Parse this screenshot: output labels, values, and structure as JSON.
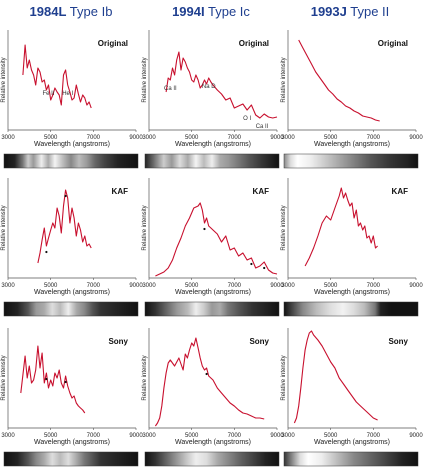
{
  "columns": [
    {
      "id": "1984L",
      "bold": "1984L",
      "rest": " Type Ib"
    },
    {
      "id": "1994I",
      "bold": "1994I",
      "rest": " Type Ic"
    },
    {
      "id": "1993J",
      "bold": "1993J",
      "rest": " Type II"
    }
  ],
  "rows": [
    {
      "label": "Original"
    },
    {
      "label": "KAF"
    },
    {
      "label": "Sony"
    }
  ],
  "ylabel": "Relative intensity",
  "xlabel": "Wavelength (angstroms)",
  "x_ticks": [
    "3000",
    "5000",
    "7000",
    "9000"
  ],
  "colors": {
    "title": "#1f3f8f",
    "curve": "#c8102e",
    "axis": "#555555"
  },
  "chart_data": [
    {
      "type": "line",
      "title": "1984L Type Ib",
      "subtitle": "Original",
      "xlabel": "Wavelength (angstroms)",
      "ylabel": "Relative intensity",
      "xlim": [
        3000,
        9000
      ],
      "ylim": [
        0,
        1
      ],
      "x": [
        3700,
        3800,
        3900,
        4000,
        4100,
        4200,
        4300,
        4400,
        4500,
        4600,
        4700,
        4800,
        4900,
        5000,
        5100,
        5200,
        5300,
        5400,
        5500,
        5600,
        5700,
        5800,
        5900,
        6000,
        6100,
        6200,
        6300,
        6400,
        6500,
        6600,
        6700,
        6800,
        6900
      ],
      "y": [
        0.55,
        0.85,
        0.62,
        0.7,
        0.6,
        0.55,
        0.45,
        0.62,
        0.58,
        0.48,
        0.5,
        0.4,
        0.45,
        0.3,
        0.35,
        0.42,
        0.38,
        0.35,
        0.25,
        0.55,
        0.6,
        0.45,
        0.38,
        0.3,
        0.32,
        0.45,
        0.36,
        0.28,
        0.35,
        0.32,
        0.25,
        0.28,
        0.22
      ],
      "annotations": [
        {
          "text": "Fe II",
          "x": 4900
        },
        {
          "text": "He I",
          "x": 5800
        }
      ]
    },
    {
      "type": "line",
      "title": "1994I Type Ic",
      "subtitle": "Original",
      "xlabel": "Wavelength (angstroms)",
      "ylabel": "Relative intensity",
      "xlim": [
        3000,
        9000
      ],
      "ylim": [
        0,
        1
      ],
      "x": [
        3800,
        3900,
        4000,
        4100,
        4200,
        4300,
        4400,
        4500,
        4600,
        4700,
        4800,
        4900,
        5000,
        5100,
        5200,
        5300,
        5400,
        5500,
        5600,
        5700,
        5800,
        5900,
        6000,
        6200,
        6400,
        6600,
        6800,
        7000,
        7200,
        7400,
        7600,
        7800,
        8000,
        8200,
        8400,
        8600,
        8800,
        9000
      ],
      "y": [
        0.38,
        0.52,
        0.5,
        0.62,
        0.55,
        0.7,
        0.78,
        0.6,
        0.72,
        0.68,
        0.62,
        0.58,
        0.5,
        0.48,
        0.55,
        0.5,
        0.42,
        0.45,
        0.5,
        0.46,
        0.52,
        0.48,
        0.45,
        0.4,
        0.36,
        0.3,
        0.32,
        0.22,
        0.24,
        0.26,
        0.2,
        0.25,
        0.15,
        0.12,
        0.16,
        0.13,
        0.12,
        0.13
      ],
      "annotations": [
        {
          "text": "Ca II",
          "x": 4000
        },
        {
          "text": "Na D",
          "x": 5800
        },
        {
          "text": "O I",
          "x": 7600
        },
        {
          "text": "Ca II",
          "x": 8300
        }
      ]
    },
    {
      "type": "line",
      "title": "1993J Type II",
      "subtitle": "Original",
      "xlabel": "Wavelength (angstroms)",
      "ylabel": "Relative intensity",
      "xlim": [
        3000,
        9000
      ],
      "ylim": [
        0,
        1
      ],
      "x": [
        3500,
        3700,
        3900,
        4100,
        4300,
        4500,
        4700,
        4900,
        5100,
        5300,
        5500,
        5700,
        5900,
        6100,
        6300,
        6500,
        6700,
        6900,
        7100,
        7300
      ],
      "y": [
        0.9,
        0.82,
        0.74,
        0.66,
        0.58,
        0.52,
        0.46,
        0.4,
        0.36,
        0.31,
        0.28,
        0.24,
        0.22,
        0.19,
        0.17,
        0.14,
        0.13,
        0.12,
        0.1,
        0.09
      ]
    },
    {
      "type": "line",
      "title": "1984L Type Ib",
      "subtitle": "KAF",
      "xlabel": "Wavelength (angstroms)",
      "ylabel": "Relative intensity",
      "xlim": [
        3000,
        9000
      ],
      "ylim": [
        0,
        1
      ],
      "x": [
        4400,
        4500,
        4600,
        4700,
        4800,
        4900,
        5000,
        5100,
        5200,
        5300,
        5400,
        5500,
        5600,
        5700,
        5800,
        5900,
        6000,
        6100,
        6200,
        6300,
        6400,
        6500,
        6600,
        6700,
        6800,
        6900
      ],
      "y": [
        0.15,
        0.25,
        0.38,
        0.5,
        0.32,
        0.4,
        0.48,
        0.55,
        0.5,
        0.7,
        0.62,
        0.45,
        0.72,
        0.88,
        0.8,
        0.55,
        0.7,
        0.6,
        0.42,
        0.55,
        0.48,
        0.36,
        0.42,
        0.32,
        0.34,
        0.3
      ],
      "markers": [
        4800,
        5700
      ]
    },
    {
      "type": "line",
      "title": "1994I Type Ic",
      "subtitle": "KAF",
      "xlabel": "Wavelength (angstroms)",
      "ylabel": "Relative intensity",
      "xlim": [
        3000,
        9000
      ],
      "ylim": [
        0,
        1
      ],
      "x": [
        3300,
        3500,
        3700,
        3900,
        4100,
        4300,
        4500,
        4700,
        4900,
        5100,
        5300,
        5400,
        5500,
        5600,
        5700,
        5800,
        5900,
        6000,
        6200,
        6400,
        6600,
        6800,
        7000,
        7200,
        7400,
        7600,
        7800,
        8000,
        8200,
        8400,
        8600,
        8800,
        9000
      ],
      "y": [
        0.02,
        0.04,
        0.06,
        0.1,
        0.18,
        0.3,
        0.4,
        0.52,
        0.6,
        0.7,
        0.72,
        0.75,
        0.68,
        0.55,
        0.6,
        0.52,
        0.5,
        0.48,
        0.44,
        0.36,
        0.42,
        0.28,
        0.3,
        0.22,
        0.25,
        0.18,
        0.2,
        0.1,
        0.12,
        0.16,
        0.08,
        0.05,
        0.04
      ],
      "markers": [
        5600,
        7800,
        8400
      ]
    },
    {
      "type": "line",
      "title": "1993J Type II",
      "subtitle": "KAF",
      "xlabel": "Wavelength (angstroms)",
      "ylabel": "Relative intensity",
      "xlim": [
        3000,
        9000
      ],
      "ylim": [
        0,
        1
      ],
      "x": [
        3800,
        4000,
        4200,
        4400,
        4600,
        4800,
        5000,
        5200,
        5400,
        5500,
        5600,
        5700,
        5800,
        5900,
        6000,
        6100,
        6200,
        6300,
        6400,
        6500,
        6600,
        6700,
        6800,
        6900,
        7000,
        7100,
        7200
      ],
      "y": [
        0.12,
        0.2,
        0.3,
        0.42,
        0.55,
        0.62,
        0.58,
        0.7,
        0.82,
        0.9,
        0.8,
        0.85,
        0.78,
        0.72,
        0.75,
        0.6,
        0.68,
        0.52,
        0.55,
        0.48,
        0.52,
        0.4,
        0.42,
        0.35,
        0.42,
        0.3,
        0.32
      ]
    },
    {
      "type": "line",
      "title": "1984L Type Ib",
      "subtitle": "Sony",
      "xlabel": "Wavelength (angstroms)",
      "ylabel": "Relative intensity",
      "xlim": [
        3000,
        9000
      ],
      "ylim": [
        0,
        1
      ],
      "x": [
        3600,
        3800,
        3900,
        4000,
        4100,
        4200,
        4300,
        4400,
        4500,
        4600,
        4700,
        4800,
        4900,
        5000,
        5100,
        5200,
        5300,
        5400,
        5500,
        5600,
        5700,
        5800,
        5900,
        6000,
        6100,
        6200,
        6300,
        6400,
        6500,
        6600
      ],
      "y": [
        0.35,
        0.72,
        0.5,
        0.62,
        0.45,
        0.48,
        0.58,
        0.82,
        0.6,
        0.75,
        0.45,
        0.55,
        0.4,
        0.48,
        0.42,
        0.55,
        0.5,
        0.58,
        0.45,
        0.4,
        0.52,
        0.42,
        0.35,
        0.3,
        0.32,
        0.25,
        0.22,
        0.2,
        0.18,
        0.15
      ],
      "markers": [
        4800,
        5700
      ]
    },
    {
      "type": "line",
      "title": "1994I Type Ic",
      "subtitle": "Sony",
      "xlabel": "Wavelength (angstroms)",
      "ylabel": "Relative intensity",
      "xlim": [
        3000,
        9000
      ],
      "ylim": [
        0,
        1
      ],
      "x": [
        3300,
        3400,
        3500,
        3600,
        3700,
        3800,
        3900,
        4000,
        4200,
        4400,
        4600,
        4700,
        4800,
        4900,
        5000,
        5100,
        5200,
        5300,
        5400,
        5500,
        5600,
        5700,
        5800,
        6000,
        6200,
        6400,
        6600,
        6800,
        7000,
        7200,
        7400,
        7600,
        7800,
        8000,
        8200,
        8400
      ],
      "y": [
        0.02,
        0.05,
        0.1,
        0.22,
        0.4,
        0.55,
        0.65,
        0.68,
        0.62,
        0.7,
        0.58,
        0.74,
        0.7,
        0.78,
        0.85,
        0.82,
        0.9,
        0.8,
        0.7,
        0.62,
        0.58,
        0.6,
        0.52,
        0.48,
        0.4,
        0.35,
        0.3,
        0.25,
        0.22,
        0.18,
        0.15,
        0.14,
        0.12,
        0.1,
        0.1,
        0.09
      ],
      "markers": [
        5700
      ]
    },
    {
      "type": "line",
      "title": "1993J Type II",
      "subtitle": "Sony",
      "xlabel": "Wavelength (angstroms)",
      "ylabel": "Relative intensity",
      "xlim": [
        3000,
        9000
      ],
      "ylim": [
        0,
        1
      ],
      "x": [
        3300,
        3400,
        3500,
        3600,
        3700,
        3800,
        3900,
        4000,
        4100,
        4200,
        4400,
        4600,
        4800,
        5000,
        5200,
        5400,
        5600,
        5800,
        6000,
        6200,
        6400,
        6600,
        6800,
        7000,
        7200
      ],
      "y": [
        0.05,
        0.1,
        0.22,
        0.4,
        0.6,
        0.78,
        0.88,
        0.95,
        0.97,
        0.93,
        0.88,
        0.82,
        0.74,
        0.66,
        0.6,
        0.5,
        0.44,
        0.38,
        0.32,
        0.26,
        0.22,
        0.18,
        0.14,
        0.1,
        0.08
      ]
    }
  ],
  "strips": [
    [
      [
        0,
        "#111"
      ],
      [
        0.08,
        "#222"
      ],
      [
        0.14,
        "#777"
      ],
      [
        0.18,
        "#ccc"
      ],
      [
        0.22,
        "#999"
      ],
      [
        0.28,
        "#eee"
      ],
      [
        0.33,
        "#aaa"
      ],
      [
        0.38,
        "#f4f4f4"
      ],
      [
        0.44,
        "#bbb"
      ],
      [
        0.5,
        "#888"
      ],
      [
        0.56,
        "#bbb"
      ],
      [
        0.62,
        "#999"
      ],
      [
        0.68,
        "#666"
      ],
      [
        0.75,
        "#444"
      ],
      [
        0.85,
        "#222"
      ],
      [
        1,
        "#111"
      ]
    ],
    [
      [
        0,
        "#222"
      ],
      [
        0.06,
        "#666"
      ],
      [
        0.14,
        "#ccc"
      ],
      [
        0.2,
        "#999"
      ],
      [
        0.26,
        "#ddd"
      ],
      [
        0.32,
        "#aaa"
      ],
      [
        0.38,
        "#f4f4f4"
      ],
      [
        0.44,
        "#bbb"
      ],
      [
        0.5,
        "#eee"
      ],
      [
        0.56,
        "#aaa"
      ],
      [
        0.62,
        "#999"
      ],
      [
        0.7,
        "#777"
      ],
      [
        0.78,
        "#555"
      ],
      [
        0.88,
        "#333"
      ],
      [
        1,
        "#111"
      ]
    ],
    [
      [
        0,
        "#888"
      ],
      [
        0.05,
        "#ddd"
      ],
      [
        0.1,
        "#fff"
      ],
      [
        0.2,
        "#eee"
      ],
      [
        0.35,
        "#bbb"
      ],
      [
        0.5,
        "#888"
      ],
      [
        0.65,
        "#555"
      ],
      [
        0.8,
        "#333"
      ],
      [
        0.92,
        "#222"
      ],
      [
        1,
        "#111"
      ]
    ],
    [
      [
        0,
        "#111"
      ],
      [
        0.1,
        "#222"
      ],
      [
        0.18,
        "#555"
      ],
      [
        0.24,
        "#999"
      ],
      [
        0.3,
        "#aaa"
      ],
      [
        0.36,
        "#ddd"
      ],
      [
        0.42,
        "#bbb"
      ],
      [
        0.48,
        "#eee"
      ],
      [
        0.54,
        "#aaa"
      ],
      [
        0.6,
        "#888"
      ],
      [
        0.66,
        "#555"
      ],
      [
        0.72,
        "#333"
      ],
      [
        0.85,
        "#222"
      ],
      [
        1,
        "#111"
      ]
    ],
    [
      [
        0,
        "#111"
      ],
      [
        0.08,
        "#333"
      ],
      [
        0.16,
        "#666"
      ],
      [
        0.24,
        "#999"
      ],
      [
        0.32,
        "#bbb"
      ],
      [
        0.38,
        "#eee"
      ],
      [
        0.44,
        "#ccc"
      ],
      [
        0.5,
        "#999"
      ],
      [
        0.56,
        "#aaa"
      ],
      [
        0.62,
        "#777"
      ],
      [
        0.7,
        "#555"
      ],
      [
        0.8,
        "#333"
      ],
      [
        0.9,
        "#222"
      ],
      [
        1,
        "#111"
      ]
    ],
    [
      [
        0,
        "#111"
      ],
      [
        0.06,
        "#444"
      ],
      [
        0.14,
        "#888"
      ],
      [
        0.24,
        "#bbb"
      ],
      [
        0.34,
        "#ddd"
      ],
      [
        0.44,
        "#f2f2f2"
      ],
      [
        0.52,
        "#ddd"
      ],
      [
        0.6,
        "#bbb"
      ],
      [
        0.68,
        "#777"
      ],
      [
        0.72,
        "#222"
      ],
      [
        0.8,
        "#111"
      ],
      [
        1,
        "#111"
      ]
    ],
    [
      [
        0,
        "#111"
      ],
      [
        0.1,
        "#222"
      ],
      [
        0.18,
        "#555"
      ],
      [
        0.24,
        "#888"
      ],
      [
        0.3,
        "#aaa"
      ],
      [
        0.36,
        "#ddd"
      ],
      [
        0.42,
        "#bbb"
      ],
      [
        0.48,
        "#ddd"
      ],
      [
        0.54,
        "#aaa"
      ],
      [
        0.6,
        "#777"
      ],
      [
        0.66,
        "#555"
      ],
      [
        0.72,
        "#333"
      ],
      [
        0.85,
        "#222"
      ],
      [
        1,
        "#111"
      ]
    ],
    [
      [
        0,
        "#111"
      ],
      [
        0.08,
        "#333"
      ],
      [
        0.16,
        "#666"
      ],
      [
        0.24,
        "#999"
      ],
      [
        0.32,
        "#ccc"
      ],
      [
        0.38,
        "#eee"
      ],
      [
        0.46,
        "#ddd"
      ],
      [
        0.54,
        "#aaa"
      ],
      [
        0.62,
        "#888"
      ],
      [
        0.7,
        "#666"
      ],
      [
        0.8,
        "#444"
      ],
      [
        0.9,
        "#222"
      ],
      [
        1,
        "#111"
      ]
    ],
    [
      [
        0,
        "#333"
      ],
      [
        0.06,
        "#888"
      ],
      [
        0.12,
        "#ddd"
      ],
      [
        0.18,
        "#fff"
      ],
      [
        0.28,
        "#eee"
      ],
      [
        0.4,
        "#bbb"
      ],
      [
        0.52,
        "#888"
      ],
      [
        0.64,
        "#666"
      ],
      [
        0.76,
        "#444"
      ],
      [
        0.88,
        "#222"
      ],
      [
        1,
        "#111"
      ]
    ]
  ]
}
